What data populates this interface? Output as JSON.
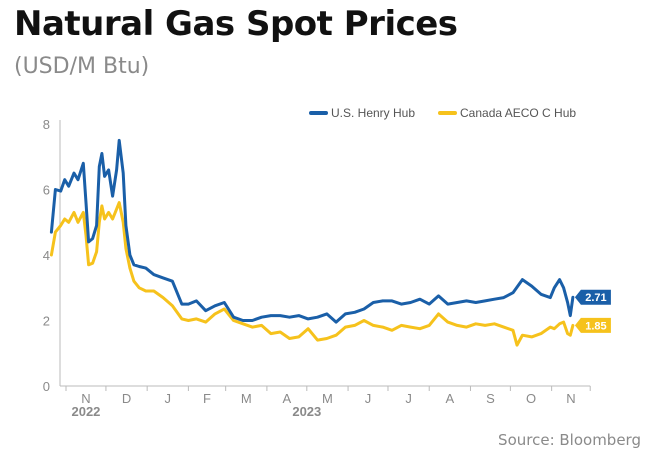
{
  "header": {
    "title": "Natural Gas Spot Prices",
    "subtitle": "(USD/M Btu)"
  },
  "source": "Source: Bloomberg",
  "colors": {
    "henry": "#1a5fa8",
    "aeco": "#f6c21c",
    "axis": "#bbbbbb",
    "text": "#8a8a8a"
  },
  "chart_data": {
    "type": "line",
    "title": "Natural Gas Spot Prices",
    "ylabel": "(USD/M Btu)",
    "xlabel": "",
    "ylim": [
      0,
      8
    ],
    "yticks": [
      0,
      2,
      4,
      6,
      8
    ],
    "grid": false,
    "legend_position": "top-right",
    "x_tick_labels": [
      "N",
      "D",
      "J",
      "F",
      "M",
      "A",
      "M",
      "J",
      "J",
      "A",
      "S",
      "O",
      "N"
    ],
    "x_tick_dates": [
      "2022-11-01",
      "2022-12-01",
      "2023-01-01",
      "2023-02-01",
      "2023-03-01",
      "2023-04-01",
      "2023-05-01",
      "2023-06-01",
      "2023-07-01",
      "2023-08-01",
      "2023-09-01",
      "2023-10-01",
      "2023-11-01"
    ],
    "year_labels": [
      {
        "label": "2022",
        "date": "2022-11-16"
      },
      {
        "label": "2023",
        "date": "2023-05-01"
      }
    ],
    "series": [
      {
        "name": "U.S. Henry Hub",
        "end_label": "2.71",
        "points": [
          [
            "2022-10-21",
            4.7
          ],
          [
            "2022-10-24",
            6.0
          ],
          [
            "2022-10-28",
            5.95
          ],
          [
            "2022-10-31",
            6.3
          ],
          [
            "2022-11-03",
            6.1
          ],
          [
            "2022-11-07",
            6.5
          ],
          [
            "2022-11-10",
            6.3
          ],
          [
            "2022-11-14",
            6.8
          ],
          [
            "2022-11-16",
            5.6
          ],
          [
            "2022-11-18",
            4.4
          ],
          [
            "2022-11-21",
            4.5
          ],
          [
            "2022-11-24",
            4.9
          ],
          [
            "2022-11-26",
            6.7
          ],
          [
            "2022-11-28",
            7.1
          ],
          [
            "2022-11-30",
            6.4
          ],
          [
            "2022-12-03",
            6.6
          ],
          [
            "2022-12-06",
            5.8
          ],
          [
            "2022-12-09",
            6.6
          ],
          [
            "2022-12-11",
            7.5
          ],
          [
            "2022-12-14",
            6.5
          ],
          [
            "2022-12-16",
            4.9
          ],
          [
            "2022-12-19",
            4.0
          ],
          [
            "2022-12-22",
            3.7
          ],
          [
            "2022-12-26",
            3.65
          ],
          [
            "2022-12-31",
            3.6
          ],
          [
            "2023-01-06",
            3.4
          ],
          [
            "2023-01-13",
            3.3
          ],
          [
            "2023-01-20",
            3.2
          ],
          [
            "2023-01-27",
            2.5
          ],
          [
            "2023-02-01",
            2.5
          ],
          [
            "2023-02-07",
            2.6
          ],
          [
            "2023-02-14",
            2.3
          ],
          [
            "2023-02-21",
            2.45
          ],
          [
            "2023-02-28",
            2.55
          ],
          [
            "2023-03-07",
            2.1
          ],
          [
            "2023-03-14",
            2.0
          ],
          [
            "2023-03-21",
            2.0
          ],
          [
            "2023-03-28",
            2.1
          ],
          [
            "2023-04-04",
            2.15
          ],
          [
            "2023-04-11",
            2.15
          ],
          [
            "2023-04-18",
            2.1
          ],
          [
            "2023-04-25",
            2.15
          ],
          [
            "2023-05-02",
            2.05
          ],
          [
            "2023-05-09",
            2.1
          ],
          [
            "2023-05-16",
            2.2
          ],
          [
            "2023-05-23",
            1.95
          ],
          [
            "2023-05-30",
            2.2
          ],
          [
            "2023-06-06",
            2.25
          ],
          [
            "2023-06-13",
            2.35
          ],
          [
            "2023-06-20",
            2.55
          ],
          [
            "2023-06-27",
            2.6
          ],
          [
            "2023-07-04",
            2.6
          ],
          [
            "2023-07-11",
            2.5
          ],
          [
            "2023-07-18",
            2.55
          ],
          [
            "2023-07-25",
            2.65
          ],
          [
            "2023-08-01",
            2.5
          ],
          [
            "2023-08-08",
            2.75
          ],
          [
            "2023-08-15",
            2.5
          ],
          [
            "2023-08-22",
            2.55
          ],
          [
            "2023-08-29",
            2.6
          ],
          [
            "2023-09-05",
            2.55
          ],
          [
            "2023-09-12",
            2.6
          ],
          [
            "2023-09-19",
            2.65
          ],
          [
            "2023-09-26",
            2.7
          ],
          [
            "2023-10-03",
            2.85
          ],
          [
            "2023-10-10",
            3.25
          ],
          [
            "2023-10-17",
            3.05
          ],
          [
            "2023-10-24",
            2.8
          ],
          [
            "2023-10-31",
            2.7
          ],
          [
            "2023-11-03",
            3.0
          ],
          [
            "2023-11-07",
            3.25
          ],
          [
            "2023-11-10",
            3.0
          ],
          [
            "2023-11-13",
            2.55
          ],
          [
            "2023-11-15",
            2.15
          ],
          [
            "2023-11-17",
            2.71
          ]
        ]
      },
      {
        "name": "Canada AECO C Hub",
        "end_label": "1.85",
        "points": [
          [
            "2022-10-21",
            4.0
          ],
          [
            "2022-10-24",
            4.7
          ],
          [
            "2022-10-28",
            4.9
          ],
          [
            "2022-10-31",
            5.1
          ],
          [
            "2022-11-03",
            5.0
          ],
          [
            "2022-11-07",
            5.3
          ],
          [
            "2022-11-10",
            5.0
          ],
          [
            "2022-11-14",
            5.3
          ],
          [
            "2022-11-16",
            4.6
          ],
          [
            "2022-11-18",
            3.7
          ],
          [
            "2022-11-21",
            3.75
          ],
          [
            "2022-11-24",
            4.1
          ],
          [
            "2022-11-26",
            5.0
          ],
          [
            "2022-11-28",
            5.5
          ],
          [
            "2022-11-30",
            5.1
          ],
          [
            "2022-12-03",
            5.3
          ],
          [
            "2022-12-06",
            5.1
          ],
          [
            "2022-12-09",
            5.4
          ],
          [
            "2022-12-11",
            5.6
          ],
          [
            "2022-12-14",
            5.0
          ],
          [
            "2022-12-16",
            4.2
          ],
          [
            "2022-12-19",
            3.6
          ],
          [
            "2022-12-22",
            3.2
          ],
          [
            "2022-12-26",
            3.0
          ],
          [
            "2022-12-31",
            2.9
          ],
          [
            "2023-01-06",
            2.9
          ],
          [
            "2023-01-13",
            2.7
          ],
          [
            "2023-01-20",
            2.45
          ],
          [
            "2023-01-27",
            2.05
          ],
          [
            "2023-02-01",
            2.0
          ],
          [
            "2023-02-07",
            2.05
          ],
          [
            "2023-02-14",
            1.95
          ],
          [
            "2023-02-21",
            2.2
          ],
          [
            "2023-02-28",
            2.35
          ],
          [
            "2023-03-07",
            2.0
          ],
          [
            "2023-03-14",
            1.9
          ],
          [
            "2023-03-21",
            1.8
          ],
          [
            "2023-03-28",
            1.85
          ],
          [
            "2023-04-04",
            1.6
          ],
          [
            "2023-04-11",
            1.65
          ],
          [
            "2023-04-18",
            1.45
          ],
          [
            "2023-04-25",
            1.5
          ],
          [
            "2023-05-02",
            1.75
          ],
          [
            "2023-05-09",
            1.4
          ],
          [
            "2023-05-16",
            1.45
          ],
          [
            "2023-05-23",
            1.55
          ],
          [
            "2023-05-30",
            1.8
          ],
          [
            "2023-06-06",
            1.85
          ],
          [
            "2023-06-13",
            2.0
          ],
          [
            "2023-06-20",
            1.85
          ],
          [
            "2023-06-27",
            1.8
          ],
          [
            "2023-07-04",
            1.7
          ],
          [
            "2023-07-11",
            1.85
          ],
          [
            "2023-07-18",
            1.8
          ],
          [
            "2023-07-25",
            1.75
          ],
          [
            "2023-08-01",
            1.85
          ],
          [
            "2023-08-08",
            2.2
          ],
          [
            "2023-08-15",
            1.95
          ],
          [
            "2023-08-22",
            1.85
          ],
          [
            "2023-08-29",
            1.8
          ],
          [
            "2023-09-05",
            1.9
          ],
          [
            "2023-09-12",
            1.85
          ],
          [
            "2023-09-19",
            1.9
          ],
          [
            "2023-09-26",
            1.8
          ],
          [
            "2023-10-03",
            1.7
          ],
          [
            "2023-10-06",
            1.25
          ],
          [
            "2023-10-10",
            1.55
          ],
          [
            "2023-10-17",
            1.5
          ],
          [
            "2023-10-24",
            1.6
          ],
          [
            "2023-10-31",
            1.8
          ],
          [
            "2023-11-03",
            1.75
          ],
          [
            "2023-11-07",
            1.9
          ],
          [
            "2023-11-10",
            1.95
          ],
          [
            "2023-11-13",
            1.6
          ],
          [
            "2023-11-15",
            1.55
          ],
          [
            "2023-11-17",
            1.85
          ]
        ]
      }
    ]
  }
}
